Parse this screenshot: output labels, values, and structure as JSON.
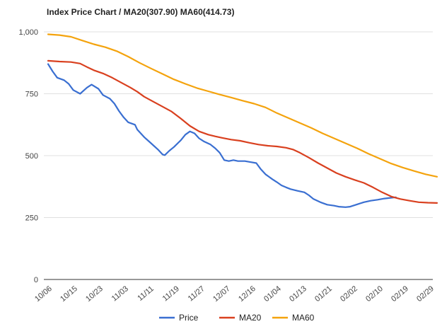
{
  "chart_data": {
    "type": "line",
    "title": "Index Price Chart / MA20(307.90) MA60(414.73)",
    "xlabel": "",
    "ylabel": "",
    "ylim": [
      0,
      1000
    ],
    "yticks": [
      0,
      250,
      500,
      750,
      1000
    ],
    "ytick_labels": [
      "0",
      "250",
      "500",
      "750",
      "1,000"
    ],
    "xtick_labels": [
      "10/06",
      "10/15",
      "10/23",
      "11/03",
      "11/11",
      "11/19",
      "11/27",
      "12/07",
      "12/16",
      "01/04",
      "01/13",
      "01/21",
      "02/02",
      "02/10",
      "02/19",
      "02/29"
    ],
    "grid": true,
    "legend_position": "bottom",
    "n_points": 100,
    "series": [
      {
        "name": "Price",
        "color": "#3a6fd1",
        "points": [
          [
            0,
            870
          ],
          [
            2,
            840
          ],
          [
            4,
            815
          ],
          [
            7,
            805
          ],
          [
            9,
            790
          ],
          [
            11,
            765
          ],
          [
            14,
            750
          ],
          [
            17,
            775
          ],
          [
            19,
            787
          ],
          [
            22,
            770
          ],
          [
            24,
            745
          ],
          [
            27,
            730
          ],
          [
            29,
            710
          ],
          [
            31,
            680
          ],
          [
            33,
            655
          ],
          [
            35,
            635
          ],
          [
            38,
            625
          ],
          [
            39,
            605
          ],
          [
            42,
            575
          ],
          [
            45,
            550
          ],
          [
            48,
            525
          ],
          [
            50,
            505
          ],
          [
            51,
            502
          ],
          [
            53,
            520
          ],
          [
            55,
            535
          ],
          [
            58,
            562
          ],
          [
            60,
            585
          ],
          [
            62,
            598
          ],
          [
            64,
            590
          ],
          [
            66,
            570
          ],
          [
            68,
            558
          ],
          [
            71,
            545
          ],
          [
            73,
            530
          ],
          [
            75,
            512
          ],
          [
            77,
            482
          ],
          [
            79,
            478
          ],
          [
            81,
            482
          ],
          [
            83,
            478
          ],
          [
            86,
            478
          ],
          [
            88,
            475
          ],
          [
            91,
            470
          ],
          [
            93,
            445
          ],
          [
            95,
            425
          ],
          [
            98,
            405
          ],
          [
            100,
            393
          ],
          [
            102,
            380
          ],
          [
            104,
            372
          ],
          [
            106,
            365
          ],
          [
            109,
            358
          ],
          [
            112,
            352
          ],
          [
            114,
            340
          ],
          [
            116,
            325
          ],
          [
            119,
            312
          ],
          [
            122,
            302
          ],
          [
            125,
            298
          ],
          [
            127,
            294
          ],
          [
            130,
            292
          ],
          [
            132,
            294
          ],
          [
            135,
            303
          ],
          [
            138,
            312
          ],
          [
            141,
            318
          ],
          [
            144,
            322
          ],
          [
            147,
            327
          ],
          [
            150,
            330
          ],
          [
            152,
            332
          ]
        ]
      },
      {
        "name": "MA20",
        "color": "#d9401f",
        "points": [
          [
            0,
            883
          ],
          [
            5,
            880
          ],
          [
            10,
            878
          ],
          [
            14,
            872
          ],
          [
            17,
            858
          ],
          [
            20,
            845
          ],
          [
            24,
            832
          ],
          [
            28,
            815
          ],
          [
            32,
            795
          ],
          [
            36,
            775
          ],
          [
            39,
            758
          ],
          [
            42,
            738
          ],
          [
            46,
            718
          ],
          [
            50,
            698
          ],
          [
            54,
            678
          ],
          [
            58,
            650
          ],
          [
            62,
            620
          ],
          [
            66,
            598
          ],
          [
            70,
            585
          ],
          [
            73,
            578
          ],
          [
            76,
            572
          ],
          [
            80,
            565
          ],
          [
            84,
            560
          ],
          [
            88,
            552
          ],
          [
            92,
            545
          ],
          [
            96,
            540
          ],
          [
            100,
            537
          ],
          [
            104,
            532
          ],
          [
            107,
            525
          ],
          [
            110,
            512
          ],
          [
            114,
            492
          ],
          [
            118,
            470
          ],
          [
            122,
            450
          ],
          [
            126,
            430
          ],
          [
            130,
            415
          ],
          [
            134,
            402
          ],
          [
            138,
            390
          ],
          [
            142,
            372
          ],
          [
            146,
            352
          ],
          [
            150,
            335
          ],
          [
            154,
            325
          ],
          [
            158,
            318
          ],
          [
            162,
            312
          ],
          [
            166,
            310
          ],
          [
            170,
            309
          ]
        ]
      },
      {
        "name": "MA60",
        "color": "#f4a30d",
        "points": [
          [
            0,
            990
          ],
          [
            5,
            987
          ],
          [
            10,
            980
          ],
          [
            15,
            965
          ],
          [
            20,
            950
          ],
          [
            25,
            938
          ],
          [
            30,
            922
          ],
          [
            35,
            900
          ],
          [
            40,
            875
          ],
          [
            45,
            852
          ],
          [
            50,
            830
          ],
          [
            55,
            808
          ],
          [
            60,
            790
          ],
          [
            65,
            773
          ],
          [
            70,
            760
          ],
          [
            75,
            747
          ],
          [
            80,
            735
          ],
          [
            85,
            722
          ],
          [
            90,
            710
          ],
          [
            95,
            695
          ],
          [
            100,
            672
          ],
          [
            105,
            652
          ],
          [
            110,
            632
          ],
          [
            115,
            612
          ],
          [
            120,
            590
          ],
          [
            125,
            570
          ],
          [
            130,
            550
          ],
          [
            135,
            530
          ],
          [
            140,
            508
          ],
          [
            145,
            488
          ],
          [
            150,
            468
          ],
          [
            155,
            452
          ],
          [
            160,
            438
          ],
          [
            165,
            425
          ],
          [
            170,
            415
          ]
        ]
      }
    ]
  }
}
